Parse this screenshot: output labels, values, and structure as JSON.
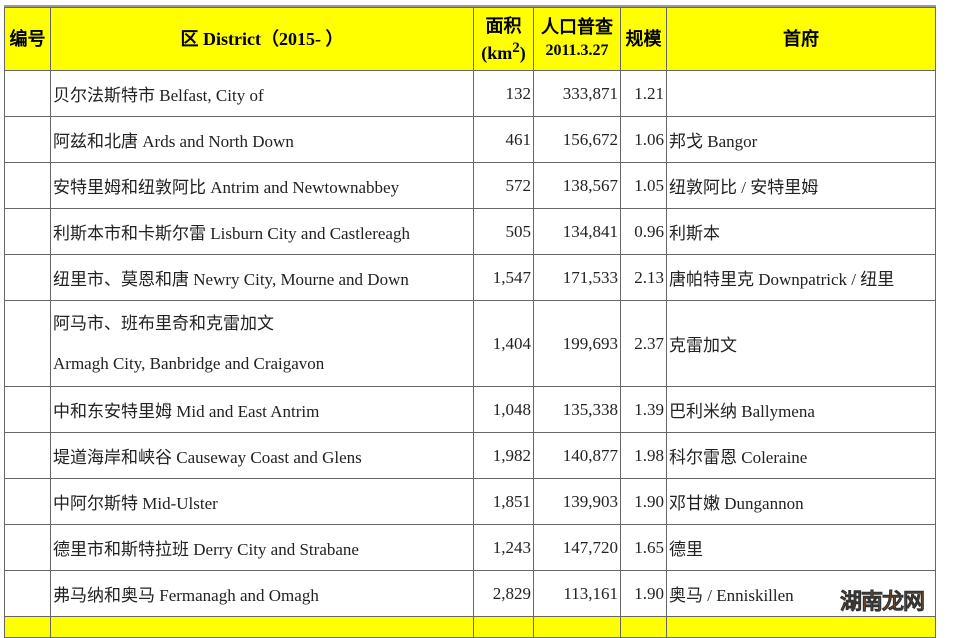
{
  "header": {
    "num": "编号",
    "district": "区 District（2015- ）",
    "area_line1": "面积",
    "area_line2": "(km",
    "area_sup": "2",
    "area_close": ")",
    "pop_line1": "人口普查",
    "pop_line2": "2011.3.27",
    "scale": "规模",
    "capital": "首府"
  },
  "rows": [
    {
      "district": "贝尔法斯特市 Belfast, City of",
      "area": "132",
      "pop": "333,871",
      "scale": "1.21",
      "capital": ""
    },
    {
      "district": "阿兹和北唐 Ards and North Down",
      "area": "461",
      "pop": "156,672",
      "scale": "1.06",
      "capital": "邦戈 Bangor"
    },
    {
      "district": "安特里姆和纽敦阿比 Antrim and Newtownabbey",
      "area": "572",
      "pop": "138,567",
      "scale": "1.05",
      "capital": "纽敦阿比 / 安特里姆"
    },
    {
      "district": "利斯本市和卡斯尔雷 Lisburn City and Castlereagh",
      "area": "505",
      "pop": "134,841",
      "scale": "0.96",
      "capital": "利斯本"
    },
    {
      "district": "纽里市、莫恩和唐 Newry City, Mourne and Down",
      "area": "1,547",
      "pop": "171,533",
      "scale": "2.13",
      "capital": "唐帕特里克 Downpatrick / 纽里"
    },
    {
      "district_line1": "阿马市、班布里奇和克雷加文",
      "district_line2": "Armagh City, Banbridge and Craigavon",
      "area": "1,404",
      "pop": "199,693",
      "scale": "2.37",
      "capital": "克雷加文"
    },
    {
      "district": "中和东安特里姆 Mid and East Antrim",
      "area": "1,048",
      "pop": "135,338",
      "scale": "1.39",
      "capital": "巴利米纳 Ballymena"
    },
    {
      "district": "堤道海岸和峡谷 Causeway Coast and Glens",
      "area": "1,982",
      "pop": "140,877",
      "scale": "1.98",
      "capital": "科尔雷恩 Coleraine"
    },
    {
      "district": "中阿尔斯特 Mid-Ulster",
      "area": "1,851",
      "pop": "139,903",
      "scale": "1.90",
      "capital": "邓甘嫩 Dungannon"
    },
    {
      "district": "德里市和斯特拉班 Derry City and Strabane",
      "area": "1,243",
      "pop": "147,720",
      "scale": "1.65",
      "capital": "德里"
    },
    {
      "district": "弗马纳和奥马 Fermanagh and Omagh",
      "area": "2,829",
      "pop": "113,161",
      "scale": "1.90",
      "capital": "奥马 / Enniskillen"
    }
  ],
  "watermark": "湖南龙网"
}
